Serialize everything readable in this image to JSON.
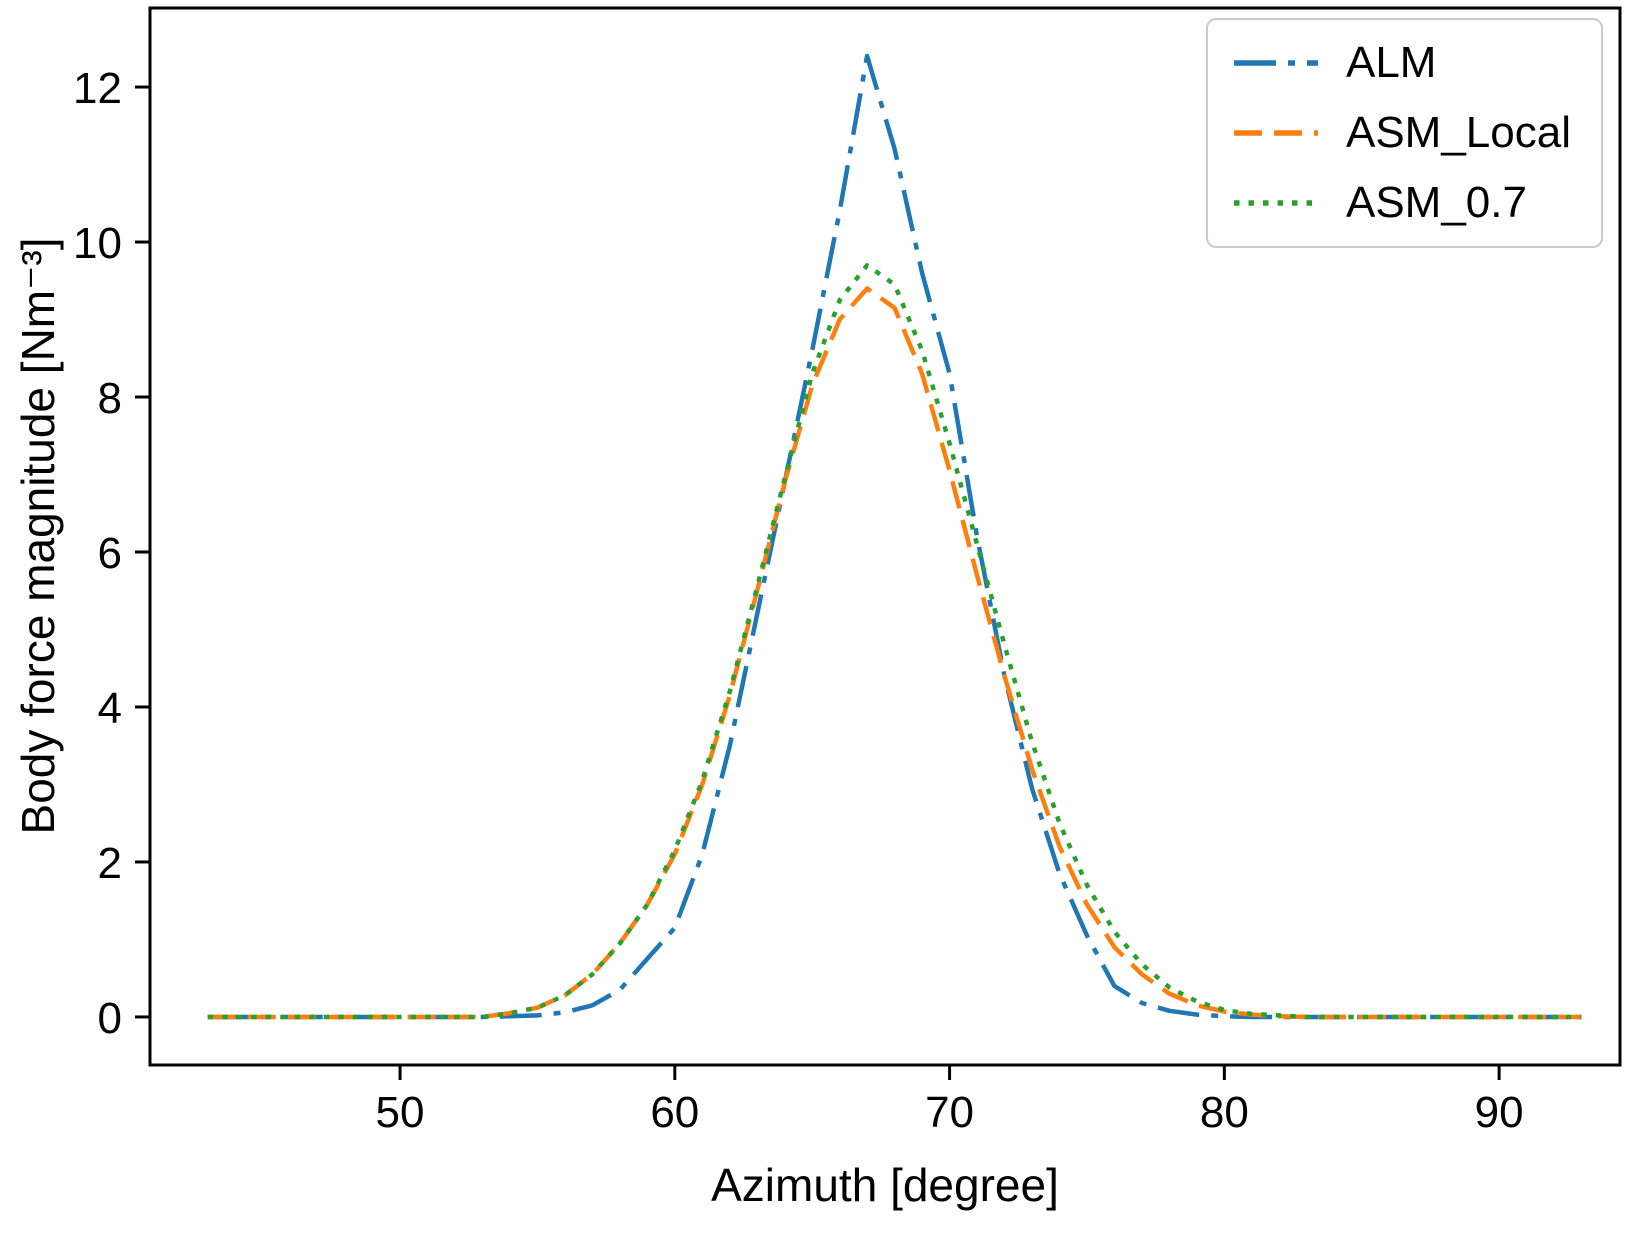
{
  "chart_data": {
    "type": "line",
    "title": "",
    "xlabel": "Azimuth [degree]",
    "ylabel": "Body force magnitude [Nm⁻³]",
    "xlim": [
      40.9,
      94.4
    ],
    "ylim": [
      -0.62,
      13.02
    ],
    "xticks": [
      50,
      60,
      70,
      80,
      90
    ],
    "yticks": [
      0,
      2,
      4,
      6,
      8,
      10,
      12
    ],
    "grid": false,
    "legend_position": "upper right",
    "x": [
      43,
      44,
      45,
      46,
      47,
      48,
      49,
      50,
      51,
      52,
      53,
      54,
      55,
      56,
      57,
      58,
      59,
      60,
      61,
      62,
      63,
      64,
      65,
      66,
      67,
      68,
      69,
      70,
      71,
      72,
      73,
      74,
      75,
      76,
      77,
      78,
      79,
      80,
      81,
      82,
      83,
      84,
      85,
      86,
      87,
      88,
      89,
      90,
      91,
      92,
      93
    ],
    "series": [
      {
        "name": "ALM",
        "color": "#1f77b4",
        "style": "dashdot",
        "values": [
          0,
          0,
          0,
          0,
          0,
          0,
          0,
          0,
          0,
          0,
          0,
          0.01,
          0.02,
          0.06,
          0.15,
          0.35,
          0.75,
          1.15,
          2.1,
          3.5,
          5.2,
          6.9,
          8.6,
          10.4,
          12.4,
          11.2,
          9.6,
          8.3,
          6.2,
          4.4,
          2.95,
          1.85,
          1.05,
          0.4,
          0.18,
          0.08,
          0.03,
          0.01,
          0,
          0,
          0,
          0,
          0,
          0,
          0,
          0,
          0,
          0,
          0,
          0,
          0
        ]
      },
      {
        "name": "ASM_Local",
        "color": "#ff7f0e",
        "style": "dashed",
        "values": [
          0,
          0,
          0,
          0,
          0,
          0,
          0,
          0,
          0,
          0,
          0,
          0.05,
          0.12,
          0.28,
          0.55,
          0.95,
          1.45,
          2.1,
          3.0,
          4.15,
          5.5,
          6.9,
          8.15,
          9.0,
          9.4,
          9.15,
          8.3,
          7.05,
          5.7,
          4.4,
          3.2,
          2.2,
          1.45,
          0.9,
          0.55,
          0.3,
          0.15,
          0.07,
          0.03,
          0.01,
          0,
          0,
          0,
          0,
          0,
          0,
          0,
          0,
          0,
          0,
          0
        ]
      },
      {
        "name": "ASM_0.7",
        "color": "#2ca02c",
        "style": "dotted",
        "values": [
          0,
          0,
          0,
          0,
          0,
          0,
          0,
          0,
          0,
          0,
          0,
          0.05,
          0.12,
          0.28,
          0.55,
          0.95,
          1.45,
          2.15,
          3.05,
          4.2,
          5.55,
          6.95,
          8.3,
          9.25,
          9.7,
          9.45,
          8.6,
          7.4,
          6.1,
          4.8,
          3.55,
          2.5,
          1.7,
          1.1,
          0.68,
          0.38,
          0.2,
          0.09,
          0.04,
          0.02,
          0,
          0,
          0,
          0,
          0,
          0,
          0,
          0,
          0,
          0,
          0
        ]
      }
    ]
  }
}
